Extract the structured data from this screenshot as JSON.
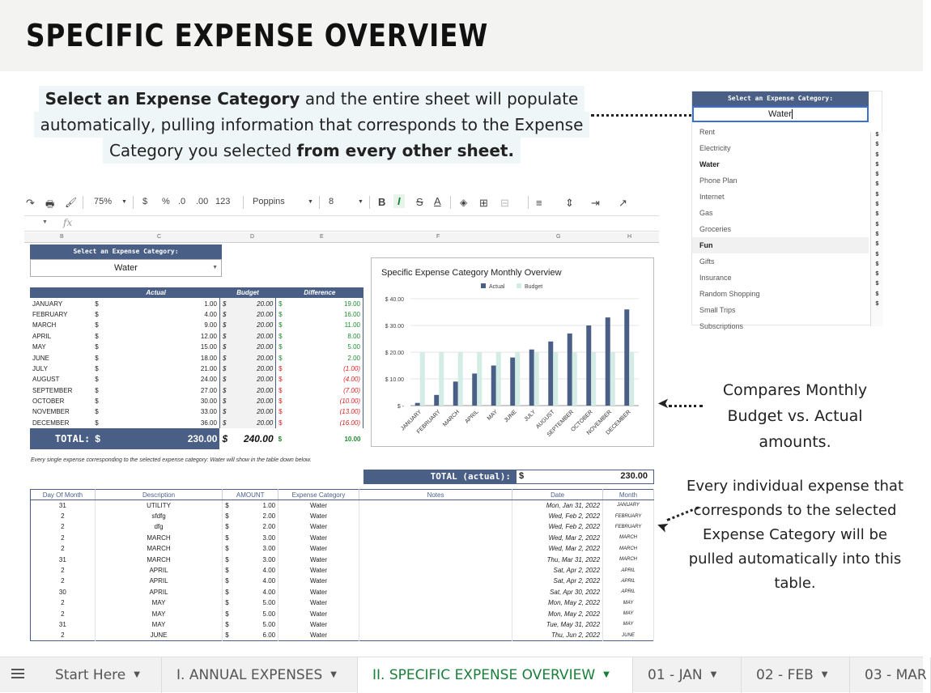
{
  "title": "SPECIFIC EXPENSE OVERVIEW",
  "callouts": {
    "top": {
      "l1_bold": "Select an Expense Category",
      "l1_rest": " and the entire sheet will populate",
      "l2": "automatically, pulling information that corresponds to the Expense",
      "l3_rest": "Category you selected ",
      "l3_bold": "from every other sheet."
    },
    "chart_note": "Compares Monthly Budget vs. Actual amounts.",
    "table_note": "Every individual expense that corresponds to the selected Expense Category will be pulled automatically into this table."
  },
  "dropdown": {
    "header": "Select an Expense Category:",
    "value": "Water",
    "options": [
      "Rent",
      "Electricity",
      "Water",
      "Phone Plan",
      "Internet",
      "Gas",
      "Groceries",
      "Fun",
      "Gifts",
      "Insurance",
      "Random Shopping",
      "Small Trips",
      "Subscriptions"
    ],
    "side_symbols": [
      "$",
      "$",
      "$",
      "$",
      "$",
      "$",
      "$",
      "$",
      "$",
      "$",
      "$",
      "$",
      "$",
      "$",
      "$",
      "$",
      "$",
      "$"
    ]
  },
  "toolbar": {
    "zoom": "75%",
    "currency": "$",
    "percent": "%",
    "dec_less": ".0",
    "dec_more": ".00",
    "format": "123",
    "font": "Poppins",
    "size": "8",
    "bold": "B",
    "italic": "I",
    "strike": "S",
    "textcolor": "A",
    "fx": "fx"
  },
  "columns": [
    "B",
    "C",
    "D",
    "E",
    "F",
    "G",
    "H"
  ],
  "sheet_select": {
    "header": "Select an Expense Category:",
    "value": "Water"
  },
  "monthly": {
    "headers": {
      "actual": "Actual",
      "budget": "Budget",
      "difference": "Difference"
    },
    "rows": [
      {
        "month": "JANUARY",
        "actual": "1.00",
        "budget": "20.00",
        "diff": "19.00",
        "neg": false
      },
      {
        "month": "FEBRUARY",
        "actual": "4.00",
        "budget": "20.00",
        "diff": "16.00",
        "neg": false
      },
      {
        "month": "MARCH",
        "actual": "9.00",
        "budget": "20.00",
        "diff": "11.00",
        "neg": false
      },
      {
        "month": "APRIL",
        "actual": "12.00",
        "budget": "20.00",
        "diff": "8.00",
        "neg": false
      },
      {
        "month": "MAY",
        "actual": "15.00",
        "budget": "20.00",
        "diff": "5.00",
        "neg": false
      },
      {
        "month": "JUNE",
        "actual": "18.00",
        "budget": "20.00",
        "diff": "2.00",
        "neg": false
      },
      {
        "month": "JULY",
        "actual": "21.00",
        "budget": "20.00",
        "diff": "(1.00)",
        "neg": true
      },
      {
        "month": "AUGUST",
        "actual": "24.00",
        "budget": "20.00",
        "diff": "(4.00)",
        "neg": true
      },
      {
        "month": "SEPTEMBER",
        "actual": "27.00",
        "budget": "20.00",
        "diff": "(7.00)",
        "neg": true
      },
      {
        "month": "OCTOBER",
        "actual": "30.00",
        "budget": "20.00",
        "diff": "(10.00)",
        "neg": true
      },
      {
        "month": "NOVEMBER",
        "actual": "33.00",
        "budget": "20.00",
        "diff": "(13.00)",
        "neg": true
      },
      {
        "month": "DECEMBER",
        "actual": "36.00",
        "budget": "20.00",
        "diff": "(16.00)",
        "neg": true
      }
    ],
    "total_label": "TOTAL:",
    "total_actual": "230.00",
    "total_budget": "240.00",
    "total_diff": "10.00",
    "currency": "$"
  },
  "note_line": "Every single expense corresponding to the selected expense category: Water will show in the table down below.",
  "chart_data": {
    "type": "bar",
    "title": "Specific Expense Category Monthly Overview",
    "categories": [
      "JANUARY",
      "FEBRUARY",
      "MARCH",
      "APRIL",
      "MAY",
      "JUNE",
      "JULY",
      "AUGUST",
      "SEPTEMBER",
      "OCTOBER",
      "NOVEMBER",
      "DECEMBER"
    ],
    "series": [
      {
        "name": "Actual",
        "color": "#4a5f86",
        "values": [
          1,
          4,
          9,
          12,
          15,
          18,
          21,
          24,
          27,
          30,
          33,
          36
        ]
      },
      {
        "name": "Budget",
        "color": "#d3ece6",
        "values": [
          20,
          20,
          20,
          20,
          20,
          20,
          20,
          20,
          20,
          20,
          20,
          20
        ]
      }
    ],
    "ylim": [
      0,
      40
    ],
    "yticks": [
      "$ -",
      "$ 10.00",
      "$ 20.00",
      "$ 30.00",
      "$ 40.00"
    ],
    "grid": true,
    "legend": "top"
  },
  "total_actual": {
    "label": "TOTAL (actual):",
    "currency": "$",
    "value": "230.00"
  },
  "expenses": {
    "headers": [
      "Day Of Month",
      "Description",
      "AMOUNT",
      "Expense Category",
      "Notes",
      "Date",
      "Month"
    ],
    "rows": [
      {
        "day": "31",
        "desc": "UTILITY",
        "amt": "1.00",
        "cat": "Water",
        "date": "Mon, Jan 31, 2022",
        "month": "JANUARY"
      },
      {
        "day": "2",
        "desc": "sfdfg",
        "amt": "2.00",
        "cat": "Water",
        "date": "Wed, Feb 2, 2022",
        "month": "FEBRUARY"
      },
      {
        "day": "2",
        "desc": "dfg",
        "amt": "2.00",
        "cat": "Water",
        "date": "Wed, Feb 2, 2022",
        "month": "FEBRUARY"
      },
      {
        "day": "2",
        "desc": "MARCH",
        "amt": "3.00",
        "cat": "Water",
        "date": "Wed, Mar 2, 2022",
        "month": "MARCH"
      },
      {
        "day": "2",
        "desc": "MARCH",
        "amt": "3.00",
        "cat": "Water",
        "date": "Wed, Mar 2, 2022",
        "month": "MARCH"
      },
      {
        "day": "31",
        "desc": "MARCH",
        "amt": "3.00",
        "cat": "Water",
        "date": "Thu, Mar 31, 2022",
        "month": "MARCH"
      },
      {
        "day": "2",
        "desc": "APRIL",
        "amt": "4.00",
        "cat": "Water",
        "date": "Sat, Apr 2, 2022",
        "month": "APRIL"
      },
      {
        "day": "2",
        "desc": "APRIL",
        "amt": "4.00",
        "cat": "Water",
        "date": "Sat, Apr 2, 2022",
        "month": "APRIL"
      },
      {
        "day": "30",
        "desc": "APRIL",
        "amt": "4.00",
        "cat": "Water",
        "date": "Sat, Apr 30, 2022",
        "month": "APRIL"
      },
      {
        "day": "2",
        "desc": "MAY",
        "amt": "5.00",
        "cat": "Water",
        "date": "Mon, May 2, 2022",
        "month": "MAY"
      },
      {
        "day": "2",
        "desc": "MAY",
        "amt": "5.00",
        "cat": "Water",
        "date": "Mon, May 2, 2022",
        "month": "MAY"
      },
      {
        "day": "31",
        "desc": "MAY",
        "amt": "5.00",
        "cat": "Water",
        "date": "Tue, May 31, 2022",
        "month": "MAY"
      },
      {
        "day": "2",
        "desc": "JUNE",
        "amt": "6.00",
        "cat": "Water",
        "date": "Thu, Jun 2, 2022",
        "month": "JUNE"
      }
    ],
    "currency": "$"
  },
  "tabs": [
    {
      "label": "Start Here",
      "active": false
    },
    {
      "label": "I. ANNUAL EXPENSES",
      "active": false
    },
    {
      "label": "II. SPECIFIC EXPENSE OVERVIEW",
      "active": true
    },
    {
      "label": "01 - JAN",
      "active": false
    },
    {
      "label": "02 - FEB",
      "active": false
    },
    {
      "label": "03 - MAR",
      "active": false
    }
  ],
  "colors": {
    "navy": "#4a5f86",
    "mint": "#d3ece6",
    "green": "#1e8c2e",
    "red": "#dd2222",
    "active_tab": "#188038"
  }
}
